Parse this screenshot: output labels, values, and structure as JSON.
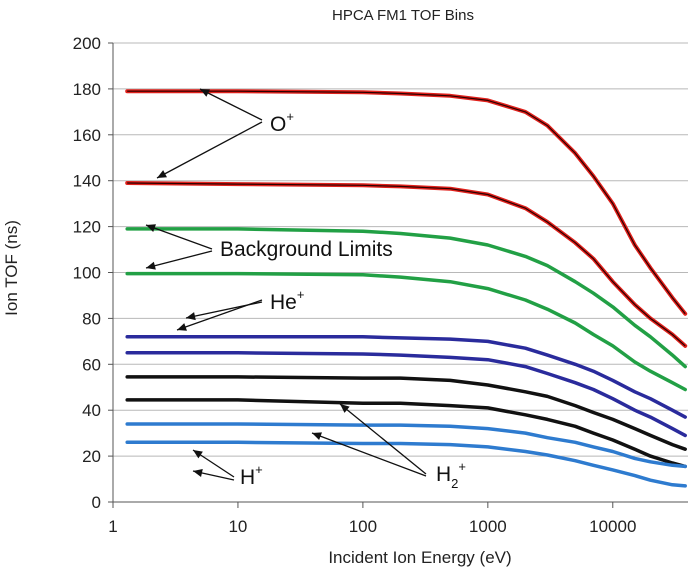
{
  "chart_data": {
    "type": "line",
    "title": "HPCA FM1 TOF Bins",
    "xlabel": "Incident Ion Energy (eV)",
    "ylabel": "Ion TOF (ns)",
    "xscale": "log",
    "xlim": [
      1,
      40000
    ],
    "ylim": [
      0,
      200
    ],
    "grid": true,
    "x_ticks": [
      1,
      10,
      100,
      1000,
      10000
    ],
    "x_tick_labels": [
      "1",
      "10",
      "100",
      "1000",
      "10000"
    ],
    "y_ticks": [
      0,
      20,
      40,
      60,
      80,
      100,
      120,
      140,
      160,
      180,
      200
    ],
    "y_tick_labels": [
      "0",
      "20",
      "40",
      "60",
      "80",
      "100",
      "120",
      "140",
      "160",
      "180",
      "200"
    ],
    "series": [
      {
        "group": "O+ upper",
        "color": "#e0201b",
        "x": [
          1.3,
          10,
          100,
          200,
          500,
          1000,
          2000,
          3000,
          5000,
          7000,
          10000,
          15000,
          20000,
          30000,
          38000
        ],
        "y": [
          179,
          179,
          178.5,
          178,
          177,
          175,
          170,
          164,
          152,
          142,
          130,
          112,
          102,
          89,
          82
        ]
      },
      {
        "group": "O+ lower",
        "color": "#e0201b",
        "x": [
          1.3,
          10,
          100,
          200,
          500,
          1000,
          2000,
          3000,
          5000,
          7000,
          10000,
          15000,
          20000,
          30000,
          38000
        ],
        "y": [
          139,
          138.5,
          138,
          137.5,
          136.5,
          134,
          128,
          122,
          113,
          106,
          96,
          86,
          80,
          73,
          68
        ]
      },
      {
        "group": "Background upper",
        "color": "#22a045",
        "x": [
          1.3,
          10,
          100,
          200,
          500,
          1000,
          2000,
          3000,
          5000,
          7000,
          10000,
          15000,
          20000,
          30000,
          38000
        ],
        "y": [
          119,
          119,
          118,
          117,
          115,
          112,
          107,
          103,
          96,
          91,
          85,
          77,
          72,
          64,
          59
        ]
      },
      {
        "group": "Background lower",
        "color": "#22a045",
        "x": [
          1.3,
          10,
          100,
          200,
          500,
          1000,
          2000,
          3000,
          5000,
          7000,
          10000,
          15000,
          20000,
          30000,
          38000
        ],
        "y": [
          99.5,
          99.5,
          99,
          98,
          96,
          93,
          88,
          84,
          78,
          73,
          68,
          61,
          57,
          52,
          49
        ]
      },
      {
        "group": "He+ upper",
        "color": "#2a2b9c",
        "x": [
          1.3,
          10,
          100,
          200,
          500,
          1000,
          2000,
          3000,
          5000,
          7000,
          10000,
          15000,
          20000,
          30000,
          38000
        ],
        "y": [
          72,
          72,
          72,
          71.5,
          71,
          70,
          67,
          64,
          60,
          57,
          53,
          48,
          45,
          40,
          37
        ]
      },
      {
        "group": "He+ lower",
        "color": "#2a2b9c",
        "x": [
          1.3,
          10,
          100,
          200,
          500,
          1000,
          2000,
          3000,
          5000,
          7000,
          10000,
          15000,
          20000,
          30000,
          38000
        ],
        "y": [
          65,
          65,
          64.5,
          64,
          63,
          62,
          59,
          56,
          52,
          49,
          45,
          40,
          37,
          32,
          29
        ]
      },
      {
        "group": "H2+ upper",
        "color": "#111111",
        "x": [
          1.3,
          10,
          100,
          200,
          500,
          1000,
          2000,
          3000,
          5000,
          7000,
          10000,
          15000,
          20000,
          30000,
          38000
        ],
        "y": [
          54.5,
          54.5,
          54,
          54,
          53,
          51,
          48,
          46,
          42,
          39,
          36,
          32,
          29,
          25,
          23
        ]
      },
      {
        "group": "H2+ lower",
        "color": "#111111",
        "x": [
          1.3,
          10,
          100,
          200,
          500,
          1000,
          2000,
          3000,
          5000,
          7000,
          10000,
          15000,
          20000,
          30000,
          38000
        ],
        "y": [
          44.5,
          44.5,
          43,
          43,
          42,
          41,
          38,
          36,
          33,
          30,
          27,
          23,
          20,
          17,
          15.5
        ]
      },
      {
        "group": "H+ upper",
        "color": "#2e7bcf",
        "x": [
          1.3,
          10,
          100,
          200,
          500,
          1000,
          2000,
          3000,
          5000,
          7000,
          10000,
          15000,
          20000,
          30000,
          38000
        ],
        "y": [
          34,
          34,
          33.5,
          33.5,
          33,
          32,
          30,
          28,
          26,
          24,
          22,
          19,
          17.5,
          16,
          15.5
        ]
      },
      {
        "group": "H+ lower",
        "color": "#2e7bcf",
        "x": [
          1.3,
          10,
          100,
          200,
          500,
          1000,
          2000,
          3000,
          5000,
          7000,
          10000,
          15000,
          20000,
          30000,
          38000
        ],
        "y": [
          26,
          26,
          25.5,
          25.5,
          25,
          24,
          22,
          20.5,
          18,
          16,
          14,
          11.5,
          9.5,
          7.5,
          7
        ]
      }
    ],
    "annotations": [
      {
        "id": "o",
        "text": "O",
        "sup": "+"
      },
      {
        "id": "bg",
        "text": "Background Limits",
        "sup": ""
      },
      {
        "id": "he",
        "text": "He",
        "sup": "+"
      },
      {
        "id": "h",
        "text": "H",
        "sup": "+"
      },
      {
        "id": "h2",
        "text": "H",
        "sub": "2",
        "sup": "+"
      }
    ]
  }
}
